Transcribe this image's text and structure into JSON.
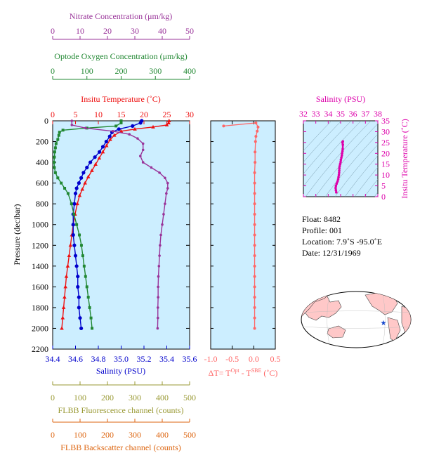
{
  "colors": {
    "nitrate": "#993399",
    "oxygen": "#228833",
    "temperature": "#ee1111",
    "salinity": "#0000cc",
    "delta": "#ff6666",
    "fluorescence": "#999933",
    "backscatter": "#dd6611",
    "panel_bg": "#cceeff",
    "inset_salinity": "#dd00aa",
    "map_land": "#ffc8c8",
    "float_marker": "#1144cc"
  },
  "axes_text": {
    "nitrate_label": "Nitrate Concentration (μm/kg)",
    "oxygen_label": "Optode Oxygen Concentration (μm/kg)",
    "temperature_label": "Insitu Temperature (˚C)",
    "salinity_label": "Salinity (PSU)",
    "pressure_label": "Pressure (decibar)",
    "delta_label_prefix": "ΔT= T",
    "delta_label_sup1": "Opt",
    "delta_label_mid": " - T",
    "delta_label_sup2": "SBE",
    "delta_label_suffix": " (˚C)",
    "fluorescence_label": "FLBB Fluorescence channel (counts)",
    "backscatter_label": "FLBB Backscatter channel (counts)",
    "inset_x_label": "Salinity (PSU)",
    "inset_y_label": "Insitu Temperature (˚C)"
  },
  "info": {
    "float": "Float:  8482",
    "profile": "Profile:  001",
    "location": "Location:  7.9˚S  -95.0˚E",
    "date": "Date:  12/31/1969"
  },
  "chart_data": [
    {
      "type": "line",
      "pressure": {
        "range": [
          2200,
          0
        ],
        "ticks": [
          "0",
          "200",
          "400",
          "600",
          "800",
          "1000",
          "1200",
          "1400",
          "1600",
          "1800",
          "2000",
          "2200"
        ]
      },
      "axes": {
        "salinity": {
          "range": [
            34.4,
            35.6
          ],
          "ticks": [
            "34.4",
            "34.6",
            "34.8",
            "35.0",
            "35.2",
            "35.4",
            "35.6"
          ]
        },
        "temperature": {
          "range": [
            0,
            30
          ],
          "ticks": [
            "0",
            "5",
            "10",
            "15",
            "20",
            "25",
            "30"
          ]
        },
        "oxygen": {
          "range": [
            0,
            400
          ],
          "ticks": [
            "0",
            "100",
            "200",
            "300",
            "400"
          ]
        },
        "nitrate": {
          "range": [
            0,
            50
          ],
          "ticks": [
            "0",
            "10",
            "20",
            "30",
            "40",
            "50"
          ]
        },
        "fluorescence": {
          "range": [
            0,
            500
          ],
          "ticks": [
            "0",
            "100",
            "200",
            "300",
            "400",
            "500"
          ]
        },
        "backscatter": {
          "range": [
            0,
            500
          ],
          "ticks": [
            "0",
            "100",
            "200",
            "300",
            "400",
            "500"
          ]
        }
      },
      "series": [
        {
          "key": "temperature",
          "values": [
            [
              25.5,
              0
            ],
            [
              25.4,
              20
            ],
            [
              25.0,
              40
            ],
            [
              22.0,
              60
            ],
            [
              18.0,
              80
            ],
            [
              15.0,
              100
            ],
            [
              13.5,
              140
            ],
            [
              12.6,
              180
            ],
            [
              11.8,
              240
            ],
            [
              11.0,
              300
            ],
            [
              10.2,
              360
            ],
            [
              9.4,
              420
            ],
            [
              8.6,
              480
            ],
            [
              7.8,
              540
            ],
            [
              7.1,
              600
            ],
            [
              6.5,
              660
            ],
            [
              5.9,
              720
            ],
            [
              5.4,
              800
            ],
            [
              4.9,
              900
            ],
            [
              4.5,
              1000
            ],
            [
              4.2,
              1100
            ],
            [
              3.9,
              1200
            ],
            [
              3.6,
              1300
            ],
            [
              3.3,
              1400
            ],
            [
              3.0,
              1500
            ],
            [
              2.8,
              1600
            ],
            [
              2.6,
              1700
            ],
            [
              2.4,
              1800
            ],
            [
              2.2,
              1900
            ],
            [
              2.0,
              2000
            ]
          ]
        },
        {
          "key": "salinity",
          "values": [
            [
              35.18,
              0
            ],
            [
              35.17,
              20
            ],
            [
              35.1,
              50
            ],
            [
              34.98,
              80
            ],
            [
              34.92,
              110
            ],
            [
              34.9,
              150
            ],
            [
              34.87,
              200
            ],
            [
              34.84,
              250
            ],
            [
              34.81,
              300
            ],
            [
              34.77,
              350
            ],
            [
              34.73,
              400
            ],
            [
              34.7,
              450
            ],
            [
              34.67,
              500
            ],
            [
              34.65,
              550
            ],
            [
              34.63,
              600
            ],
            [
              34.61,
              650
            ],
            [
              34.6,
              700
            ],
            [
              34.59,
              800
            ],
            [
              34.58,
              900
            ],
            [
              34.58,
              1000
            ],
            [
              34.58,
              1100
            ],
            [
              34.59,
              1200
            ],
            [
              34.6,
              1300
            ],
            [
              34.61,
              1400
            ],
            [
              34.62,
              1500
            ],
            [
              34.62,
              1600
            ],
            [
              34.63,
              1700
            ],
            [
              34.63,
              1800
            ],
            [
              34.64,
              1900
            ],
            [
              34.65,
              2000
            ]
          ]
        },
        {
          "key": "oxygen",
          "values": [
            [
              200,
              0
            ],
            [
              200,
              20
            ],
            [
              185,
              50
            ],
            [
              100,
              70
            ],
            [
              30,
              90
            ],
            [
              20,
              110
            ],
            [
              18,
              140
            ],
            [
              15,
              180
            ],
            [
              10,
              220
            ],
            [
              8,
              260
            ],
            [
              6,
              300
            ],
            [
              5,
              350
            ],
            [
              4,
              400
            ],
            [
              5,
              450
            ],
            [
              8,
              500
            ],
            [
              15,
              550
            ],
            [
              25,
              600
            ],
            [
              35,
              650
            ],
            [
              45,
              700
            ],
            [
              55,
              800
            ],
            [
              62,
              900
            ],
            [
              70,
              1000
            ],
            [
              78,
              1100
            ],
            [
              84,
              1200
            ],
            [
              88,
              1300
            ],
            [
              92,
              1400
            ],
            [
              96,
              1500
            ],
            [
              100,
              1600
            ],
            [
              104,
              1700
            ],
            [
              108,
              1800
            ],
            [
              112,
              1900
            ],
            [
              115,
              2000
            ]
          ]
        },
        {
          "key": "nitrate",
          "values": [
            [
              7,
              0
            ],
            [
              7,
              40
            ],
            [
              12,
              70
            ],
            [
              22,
              100
            ],
            [
              28,
              130
            ],
            [
              31,
              170
            ],
            [
              33,
              220
            ],
            [
              33,
              280
            ],
            [
              32,
              340
            ],
            [
              33,
              400
            ],
            [
              36,
              450
            ],
            [
              39,
              500
            ],
            [
              41,
              550
            ],
            [
              42,
              600
            ],
            [
              42,
              650
            ],
            [
              41.5,
              700
            ],
            [
              41,
              800
            ],
            [
              40.5,
              900
            ],
            [
              40,
              1000
            ],
            [
              39.5,
              1100
            ],
            [
              39.2,
              1200
            ],
            [
              39,
              1300
            ],
            [
              38.8,
              1400
            ],
            [
              38.6,
              1500
            ],
            [
              38.5,
              1600
            ],
            [
              38.5,
              1700
            ],
            [
              38.4,
              1800
            ],
            [
              38.4,
              1900
            ],
            [
              38.3,
              2000
            ]
          ]
        }
      ]
    },
    {
      "type": "line",
      "x_label": "ΔT",
      "xlim": [
        -1.0,
        0.5
      ],
      "x_ticks": [
        "-1.0",
        "-0.5",
        "0.0",
        "0.5"
      ],
      "ylim": [
        2200,
        0
      ],
      "values": [
        [
          -0.7,
          50
        ],
        [
          0.05,
          20
        ],
        [
          0.1,
          60
        ],
        [
          0.08,
          100
        ],
        [
          0.05,
          150
        ],
        [
          0.04,
          200
        ],
        [
          0.03,
          300
        ],
        [
          0.03,
          400
        ],
        [
          0.02,
          500
        ],
        [
          0.02,
          600
        ],
        [
          0.02,
          700
        ],
        [
          0.02,
          800
        ],
        [
          0.02,
          900
        ],
        [
          0.02,
          1000
        ],
        [
          0.02,
          1100
        ],
        [
          0.02,
          1200
        ],
        [
          0.02,
          1300
        ],
        [
          0.02,
          1400
        ],
        [
          0.02,
          1500
        ],
        [
          0.02,
          1600
        ],
        [
          0.02,
          1700
        ],
        [
          0.02,
          1800
        ],
        [
          0.02,
          1900
        ],
        [
          0.02,
          2000
        ]
      ]
    },
    {
      "type": "scatter",
      "xlim": [
        32,
        38
      ],
      "x_ticks": [
        "32",
        "33",
        "34",
        "35",
        "36",
        "37",
        "38"
      ],
      "ylim": [
        0,
        35
      ],
      "y_ticks": [
        "0",
        "5",
        "10",
        "15",
        "20",
        "25",
        "30",
        "35"
      ],
      "values": [
        [
          34.65,
          2
        ],
        [
          34.62,
          3
        ],
        [
          34.6,
          4
        ],
        [
          34.62,
          5
        ],
        [
          34.68,
          6
        ],
        [
          34.75,
          7
        ],
        [
          34.8,
          8
        ],
        [
          34.83,
          9
        ],
        [
          34.86,
          10
        ],
        [
          34.88,
          11
        ],
        [
          34.89,
          12
        ],
        [
          34.9,
          13
        ],
        [
          34.92,
          14
        ],
        [
          34.96,
          15
        ],
        [
          35.0,
          16
        ],
        [
          35.02,
          17
        ],
        [
          35.06,
          18
        ],
        [
          35.1,
          19
        ],
        [
          35.12,
          20
        ],
        [
          35.15,
          21
        ],
        [
          35.17,
          22
        ],
        [
          35.18,
          24
        ],
        [
          35.15,
          25
        ],
        [
          35.18,
          25.5
        ]
      ]
    }
  ]
}
